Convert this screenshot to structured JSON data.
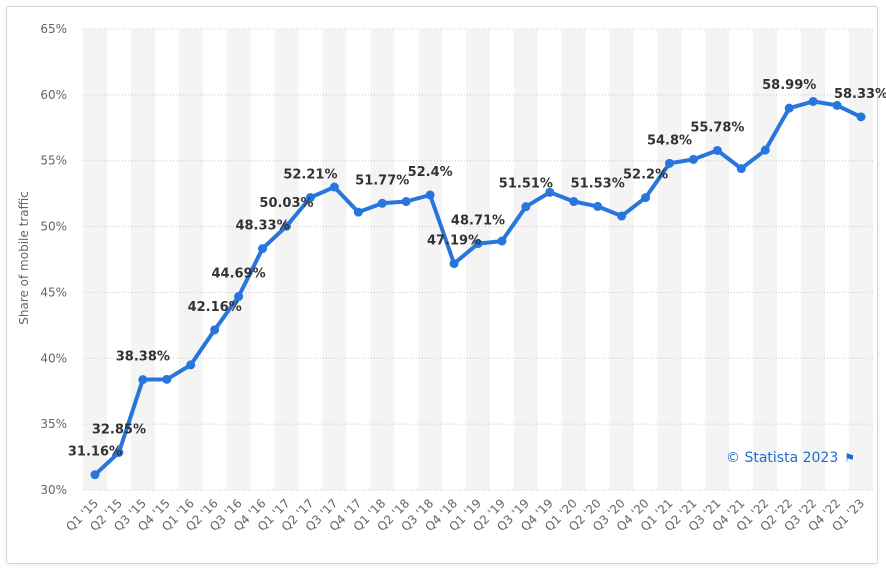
{
  "chart_data": {
    "type": "line",
    "ylabel": "Share of mobile traffic",
    "ylim": [
      30,
      65
    ],
    "yticks": [
      "30%",
      "35%",
      "40%",
      "45%",
      "50%",
      "55%",
      "60%",
      "65%"
    ],
    "grid": true,
    "categories": [
      "Q1 '15",
      "Q2 '15",
      "Q3 '15",
      "Q4 '15",
      "Q1 '16",
      "Q2 '16",
      "Q3 '16",
      "Q4 '16",
      "Q1 '17",
      "Q2 '17",
      "Q3 '17",
      "Q4 '17",
      "Q1 '18",
      "Q2 '18",
      "Q3 '18",
      "Q4 '18",
      "Q1 '19",
      "Q2 '19",
      "Q3 '19",
      "Q4 '19",
      "Q1 '20",
      "Q2 '20",
      "Q3 '20",
      "Q4 '20",
      "Q1 '21",
      "Q2 '21",
      "Q3 '21",
      "Q4 '21",
      "Q1 '22",
      "Q2 '22",
      "Q3 '22",
      "Q4 '22",
      "Q1 '23"
    ],
    "values": [
      31.16,
      32.85,
      38.38,
      38.4,
      39.5,
      42.16,
      44.69,
      48.33,
      50.03,
      52.21,
      53.0,
      51.1,
      51.77,
      51.9,
      52.4,
      47.19,
      48.71,
      48.9,
      51.51,
      52.6,
      51.9,
      51.53,
      50.8,
      52.2,
      54.8,
      55.1,
      55.78,
      54.4,
      55.8,
      58.99,
      59.5,
      59.2,
      58.33
    ],
    "data_labels": [
      {
        "index": 0,
        "text": "31.16%"
      },
      {
        "index": 1,
        "text": "32.85%"
      },
      {
        "index": 2,
        "text": "38.38%"
      },
      {
        "index": 5,
        "text": "42.16%"
      },
      {
        "index": 6,
        "text": "44.69%"
      },
      {
        "index": 7,
        "text": "48.33%"
      },
      {
        "index": 8,
        "text": "50.03%"
      },
      {
        "index": 9,
        "text": "52.21%"
      },
      {
        "index": 12,
        "text": "51.77%"
      },
      {
        "index": 14,
        "text": "52.4%"
      },
      {
        "index": 15,
        "text": "47.19%"
      },
      {
        "index": 16,
        "text": "48.71%"
      },
      {
        "index": 18,
        "text": "51.51%"
      },
      {
        "index": 21,
        "text": "51.53%"
      },
      {
        "index": 23,
        "text": "52.2%"
      },
      {
        "index": 24,
        "text": "54.8%"
      },
      {
        "index": 26,
        "text": "55.78%"
      },
      {
        "index": 29,
        "text": "58.99%"
      },
      {
        "index": 32,
        "text": "58.33%"
      }
    ],
    "line_color": "#2876dd",
    "stripe_color": "#f4f4f4"
  },
  "credit": {
    "text": "© Statista 2023",
    "icon": "flag-icon",
    "color": "#1f6ccf"
  }
}
